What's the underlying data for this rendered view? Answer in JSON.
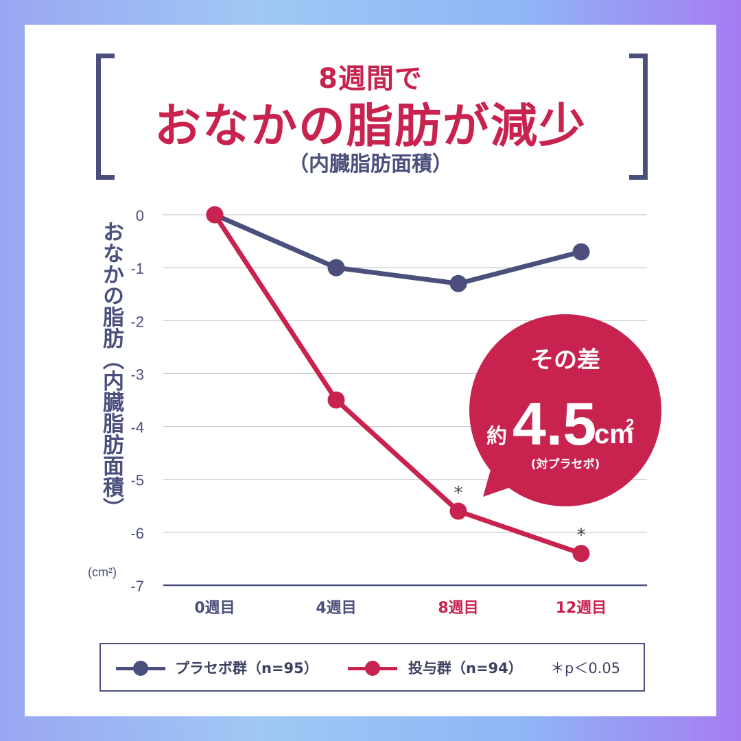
{
  "title": {
    "line1": "8週間で",
    "line2": "おなかの脂肪が減少",
    "line3": "（内臓脂肪面積）"
  },
  "colors": {
    "placebo": "#4a4f7c",
    "treatment": "#c8234f",
    "grid": "#c9c9cf",
    "axis_text": "#4a4f7c"
  },
  "callout": {
    "line1": "その差",
    "prefix": "約",
    "value": "4.5",
    "unit": "cm",
    "superscript": "2",
    "note": "(対プラセボ)"
  },
  "chart_data": {
    "type": "line",
    "ylabel": "おなかの脂肪（内臓脂肪面積）",
    "yunit": "(cm²)",
    "ylim": [
      -7,
      0
    ],
    "yticks": [
      "0",
      "-1",
      "-2",
      "-3",
      "-4",
      "-5",
      "-6",
      "-7"
    ],
    "categories": [
      "0週目",
      "4週目",
      "8週目",
      "12週目"
    ],
    "highlighted_categories": [
      "8週目",
      "12週目"
    ],
    "grid": true,
    "series": [
      {
        "name": "プラセボ群（n=95）",
        "values": [
          0,
          -1.0,
          -1.3,
          -0.7
        ]
      },
      {
        "name": "投与群（n=94）",
        "values": [
          0,
          -3.5,
          -5.6,
          -6.4
        ],
        "significant": [
          false,
          false,
          true,
          true
        ]
      }
    ],
    "significance_marker": "*",
    "note": "＊p＜0.05"
  }
}
